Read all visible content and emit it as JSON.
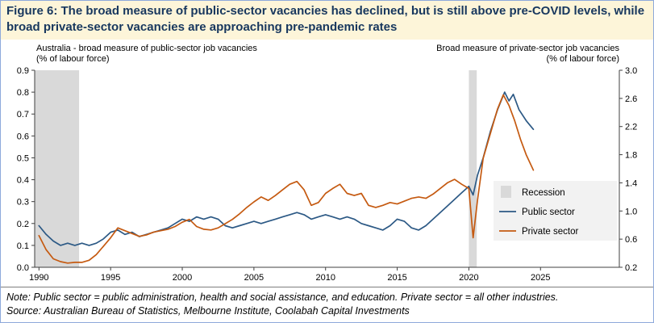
{
  "figure": {
    "title": "Figure 6: The broad measure of public-sector vacancies has declined, but is still above pre-COVID levels, while broad private-sector vacancies are approaching pre-pandemic rates",
    "note": "Note: Public sector = public administration, health and social assistance, and education. Private sector = all other industries.",
    "source": "Source: Australian Bureau of Statistics, Melbourne Institute, Coolabah Capital Investments"
  },
  "colors": {
    "title_bg": "#FDF5D9",
    "title_text": "#17375E",
    "frame_border": "#8EA9DB",
    "public_sector": "#2C5985",
    "private_sector": "#C55A11",
    "recession": "#D9D9D9",
    "axis": "#404040",
    "legend_bg": "#F2F2F2"
  },
  "chart_data": {
    "type": "line",
    "x_range": [
      1989.7,
      2030.5
    ],
    "x_ticks": [
      1990,
      1995,
      2000,
      2005,
      2010,
      2015,
      2020,
      2025
    ],
    "left_axis": {
      "label_line1": "Australia - broad measure of public-sector job vacancies",
      "label_line2": "(% of labour force)",
      "range": [
        0.0,
        0.9
      ],
      "ticks": [
        0.0,
        0.1,
        0.2,
        0.3,
        0.4,
        0.5,
        0.6,
        0.7,
        0.8,
        0.9
      ]
    },
    "right_axis": {
      "label_line1": "Broad measure of private-sector job vacancies",
      "label_line2": "(% of labour force)",
      "range": [
        0.2,
        3.0
      ],
      "ticks": [
        0.2,
        0.6,
        1.0,
        1.4,
        1.8,
        2.2,
        2.6,
        3.0
      ]
    },
    "recessions": [
      [
        1989.7,
        1992.8
      ],
      [
        2020.0,
        2020.55
      ]
    ],
    "legend": [
      {
        "label": "Recession",
        "type": "box",
        "color": "#D9D9D9"
      },
      {
        "label": "Public sector",
        "type": "line",
        "color": "#2C5985"
      },
      {
        "label": "Private sector",
        "type": "line",
        "color": "#C55A11"
      }
    ],
    "series": [
      {
        "name": "Public sector",
        "axis": "left",
        "color": "#2C5985",
        "x": [
          1990,
          1990.5,
          1991,
          1991.5,
          1992,
          1992.5,
          1993,
          1993.5,
          1994,
          1994.5,
          1995,
          1995.5,
          1996,
          1996.5,
          1997,
          1997.5,
          1998,
          1998.5,
          1999,
          1999.5,
          2000,
          2000.5,
          2001,
          2001.5,
          2002,
          2002.5,
          2003,
          2003.5,
          2004,
          2004.5,
          2005,
          2005.5,
          2006,
          2006.5,
          2007,
          2007.5,
          2008,
          2008.5,
          2009,
          2009.5,
          2010,
          2010.5,
          2011,
          2011.5,
          2012,
          2012.5,
          2013,
          2013.5,
          2014,
          2014.5,
          2015,
          2015.5,
          2016,
          2016.5,
          2017,
          2017.5,
          2018,
          2018.5,
          2019,
          2019.5,
          2020,
          2020.3,
          2020.6,
          2021,
          2021.5,
          2022,
          2022.5,
          2022.8,
          2023.1,
          2023.5,
          2024,
          2024.5
        ],
        "y": [
          0.19,
          0.15,
          0.12,
          0.1,
          0.11,
          0.1,
          0.11,
          0.1,
          0.11,
          0.13,
          0.16,
          0.17,
          0.15,
          0.16,
          0.14,
          0.15,
          0.16,
          0.17,
          0.18,
          0.2,
          0.22,
          0.21,
          0.23,
          0.22,
          0.23,
          0.22,
          0.19,
          0.18,
          0.19,
          0.2,
          0.21,
          0.2,
          0.21,
          0.22,
          0.23,
          0.24,
          0.25,
          0.24,
          0.22,
          0.23,
          0.24,
          0.23,
          0.22,
          0.23,
          0.22,
          0.2,
          0.19,
          0.18,
          0.17,
          0.19,
          0.22,
          0.21,
          0.18,
          0.17,
          0.19,
          0.22,
          0.25,
          0.28,
          0.31,
          0.34,
          0.37,
          0.33,
          0.42,
          0.5,
          0.62,
          0.72,
          0.8,
          0.76,
          0.79,
          0.72,
          0.67,
          0.63
        ]
      },
      {
        "name": "Private sector",
        "axis": "right",
        "color": "#C55A11",
        "x": [
          1990,
          1990.5,
          1991,
          1991.5,
          1992,
          1992.5,
          1993,
          1993.5,
          1994,
          1994.5,
          1995,
          1995.5,
          1996,
          1996.5,
          1997,
          1997.5,
          1998,
          1998.5,
          1999,
          1999.5,
          2000,
          2000.5,
          2001,
          2001.5,
          2002,
          2002.5,
          2003,
          2003.5,
          2004,
          2004.5,
          2005,
          2005.5,
          2006,
          2006.5,
          2007,
          2007.5,
          2008,
          2008.5,
          2009,
          2009.5,
          2010,
          2010.5,
          2011,
          2011.5,
          2012,
          2012.5,
          2013,
          2013.5,
          2014,
          2014.5,
          2015,
          2015.5,
          2016,
          2016.5,
          2017,
          2017.5,
          2018,
          2018.5,
          2019,
          2019.5,
          2020,
          2020.3,
          2020.6,
          2021,
          2021.5,
          2022,
          2022.4,
          2022.8,
          2023.2,
          2023.6,
          2024,
          2024.5
        ],
        "y": [
          0.65,
          0.45,
          0.32,
          0.28,
          0.26,
          0.27,
          0.27,
          0.3,
          0.38,
          0.5,
          0.62,
          0.76,
          0.72,
          0.68,
          0.64,
          0.66,
          0.7,
          0.72,
          0.74,
          0.78,
          0.84,
          0.88,
          0.78,
          0.74,
          0.73,
          0.76,
          0.82,
          0.88,
          0.96,
          1.05,
          1.13,
          1.2,
          1.15,
          1.22,
          1.3,
          1.38,
          1.42,
          1.3,
          1.08,
          1.12,
          1.25,
          1.32,
          1.38,
          1.25,
          1.22,
          1.25,
          1.08,
          1.05,
          1.08,
          1.12,
          1.1,
          1.14,
          1.18,
          1.2,
          1.18,
          1.24,
          1.32,
          1.4,
          1.45,
          1.38,
          1.32,
          0.62,
          1.15,
          1.75,
          2.1,
          2.45,
          2.65,
          2.5,
          2.28,
          2.02,
          1.8,
          1.58
        ]
      }
    ],
    "legend_position": {
      "x_frac": 0.8,
      "y_rows": [
        189,
        213,
        237
      ]
    }
  }
}
